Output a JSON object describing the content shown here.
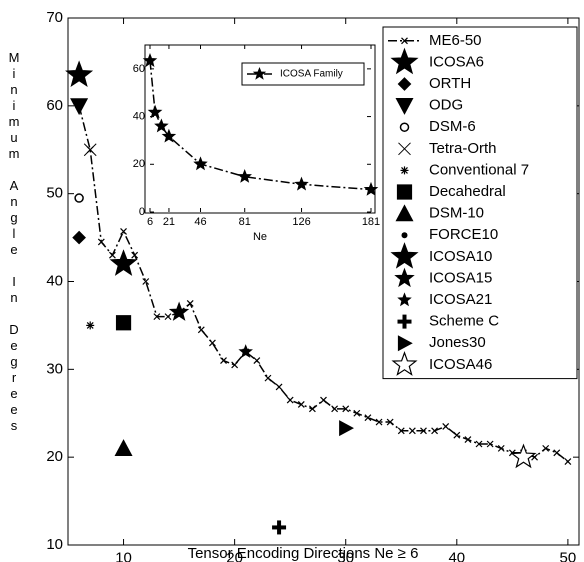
{
  "chart_data": [
    {
      "type": "line",
      "xlabel": "Tensor Encoding Directions Ne ≥ 6",
      "ylabel": "Minimum Angle In Degrees",
      "xlim": [
        5,
        51
      ],
      "ylim": [
        10,
        70
      ],
      "xticks": [
        10,
        20,
        30,
        40,
        50
      ],
      "yticks": [
        10,
        20,
        30,
        40,
        50,
        60,
        70
      ],
      "legend": "upper right",
      "series": [
        {
          "name": "ME6-50",
          "color": "#000000",
          "marker": "x",
          "line": "dashdot",
          "x": [
            6,
            7,
            8,
            9,
            10,
            11,
            12,
            13,
            14,
            15,
            16,
            17,
            18,
            19,
            20,
            21,
            22,
            23,
            24,
            25,
            26,
            27,
            28,
            29,
            30,
            31,
            32,
            33,
            34,
            35,
            36,
            37,
            38,
            39,
            40,
            41,
            42,
            43,
            44,
            45,
            46,
            47,
            48,
            49,
            50
          ],
          "values": [
            60,
            55,
            44.5,
            43,
            45.7,
            43,
            40,
            36,
            36,
            36.5,
            37.5,
            34.5,
            33,
            31,
            30.5,
            32,
            31,
            29,
            28,
            26.5,
            26,
            25.5,
            26.5,
            25.5,
            25.5,
            25,
            24.5,
            24,
            24,
            23,
            23,
            23,
            23,
            23.5,
            22.5,
            22,
            21.5,
            21.5,
            21,
            20.5,
            20.5,
            20,
            21,
            20.5,
            19.5
          ]
        },
        {
          "name": "ICOSA6",
          "color": "#000000",
          "marker": "star-big",
          "x": [
            6
          ],
          "values": [
            63.5
          ]
        },
        {
          "name": "ORTH",
          "color": "#000000",
          "marker": "diamond",
          "x": [
            6
          ],
          "values": [
            45
          ]
        },
        {
          "name": "ODG",
          "color": "#000000",
          "marker": "triangle-down",
          "x": [
            6
          ],
          "values": [
            60
          ]
        },
        {
          "name": "DSM-6",
          "color": "#000000",
          "marker": "circle-open",
          "x": [
            6
          ],
          "values": [
            49.5
          ]
        },
        {
          "name": "Tetra-Orth",
          "color": "#000000",
          "marker": "x-big",
          "x": [
            7
          ],
          "values": [
            55
          ]
        },
        {
          "name": "Conventional 7",
          "color": "#000000",
          "marker": "asterisk",
          "x": [
            7
          ],
          "values": [
            35
          ]
        },
        {
          "name": "Decahedral",
          "color": "#000000",
          "marker": "square",
          "x": [
            10
          ],
          "values": [
            35.3
          ]
        },
        {
          "name": "DSM-10",
          "color": "#000000",
          "marker": "triangle-up",
          "x": [
            10
          ],
          "values": [
            21
          ]
        },
        {
          "name": "FORCE10",
          "color": "#000000",
          "marker": "dot",
          "x": [
            10
          ],
          "values": [
            42
          ]
        },
        {
          "name": "ICOSA10",
          "color": "#000000",
          "marker": "star-big",
          "x": [
            10
          ],
          "values": [
            42
          ]
        },
        {
          "name": "ICOSA15",
          "color": "#000000",
          "marker": "star",
          "x": [
            15
          ],
          "values": [
            36.5
          ]
        },
        {
          "name": "ICOSA21",
          "color": "#000000",
          "marker": "star-small",
          "x": [
            21
          ],
          "values": [
            32
          ]
        },
        {
          "name": "Scheme C",
          "color": "#000000",
          "marker": "plus",
          "x": [
            24
          ],
          "values": [
            12
          ]
        },
        {
          "name": "Jones30",
          "color": "#000000",
          "marker": "triangle-right",
          "x": [
            30
          ],
          "values": [
            23.3
          ]
        },
        {
          "name": "ICOSA46",
          "color": "#000000",
          "marker": "star-open",
          "x": [
            46
          ],
          "values": [
            20
          ]
        }
      ]
    },
    {
      "type": "line",
      "xlabel": "Ne",
      "xlim": [
        6,
        181
      ],
      "ylim": [
        0,
        70
      ],
      "xticks": [
        6,
        21,
        46,
        81,
        126,
        181
      ],
      "yticks": [
        0,
        20,
        40,
        60
      ],
      "legend": "upper right",
      "series": [
        {
          "name": "ICOSA Family",
          "color": "#000000",
          "marker": "star-small",
          "line": "dashdot",
          "x": [
            6,
            10,
            15,
            21,
            46,
            81,
            126,
            181
          ],
          "values": [
            63.4,
            41.8,
            36,
            31.7,
            20.1,
            14.8,
            11.6,
            9.4
          ]
        }
      ]
    }
  ]
}
